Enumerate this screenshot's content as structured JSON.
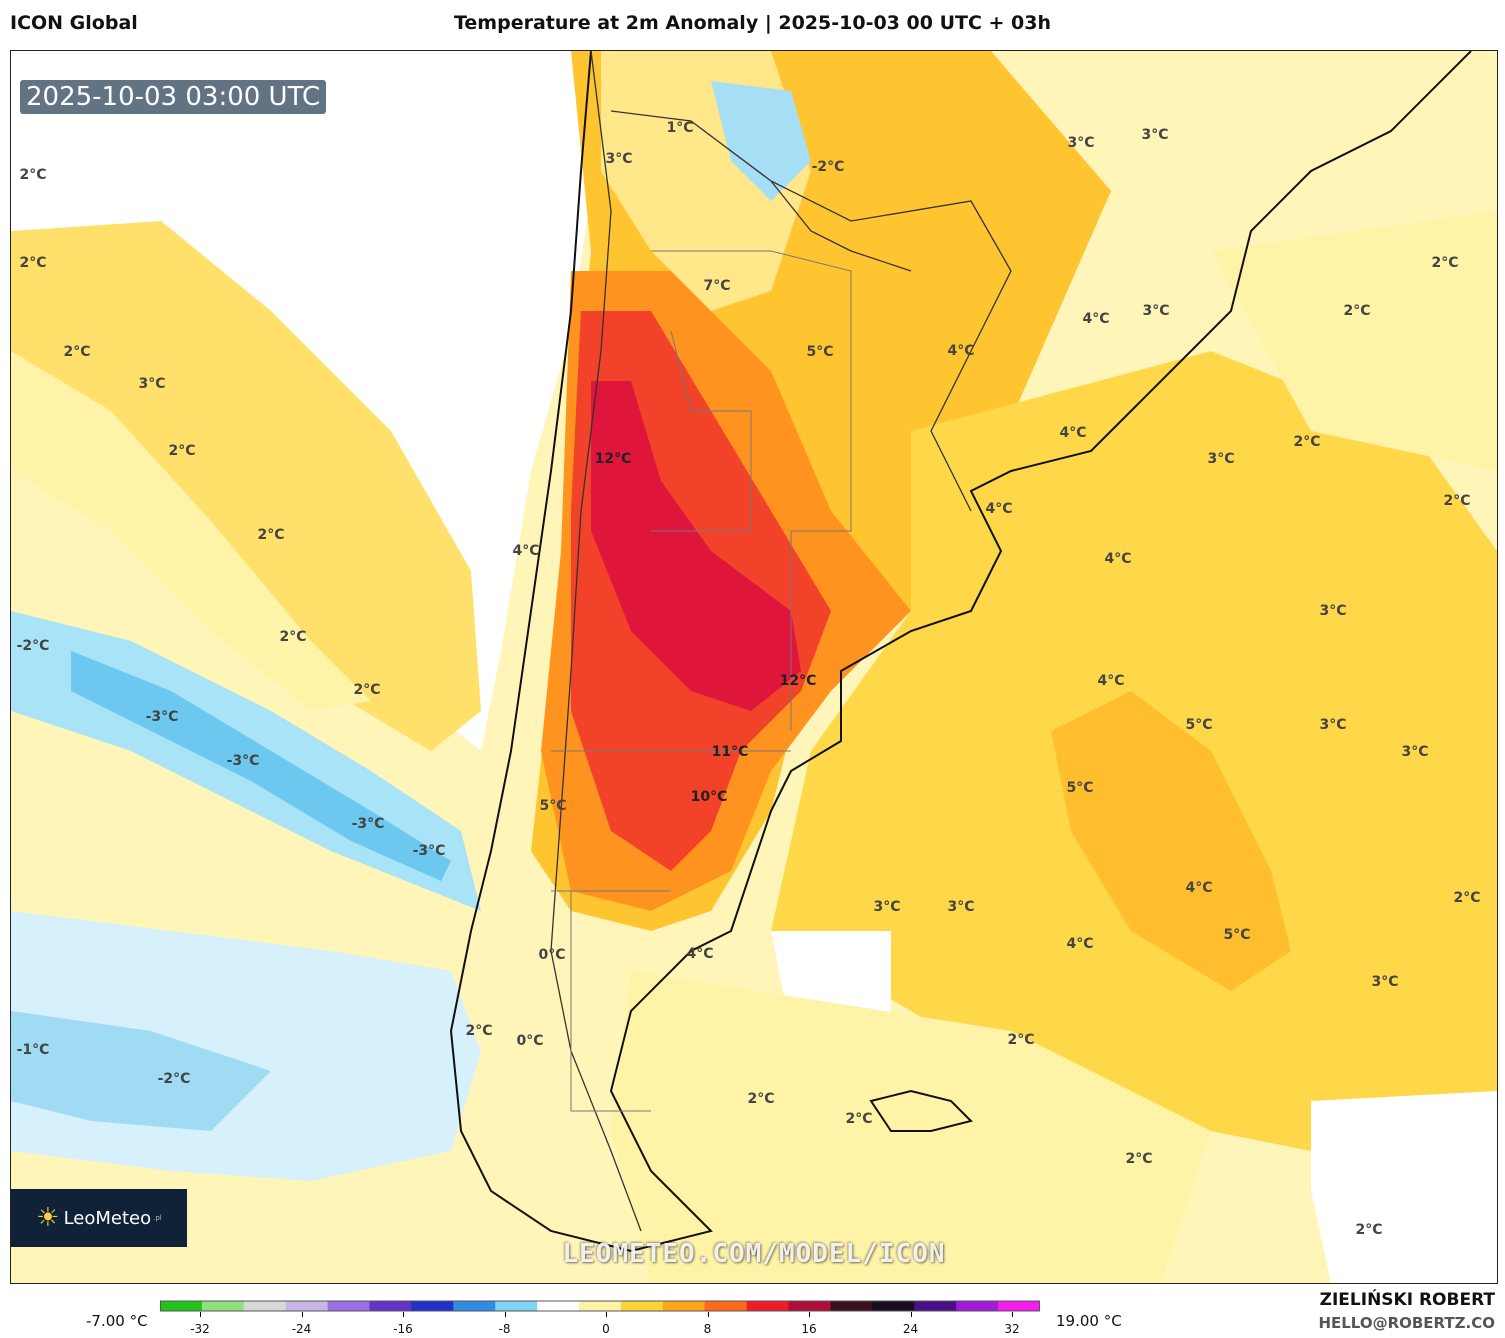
{
  "header": {
    "model": "ICON Global",
    "title": "Temperature at 2m Anomaly | 2025-10-03 00 UTC + 03h"
  },
  "map": {
    "valid_time": "2025-10-03 03:00 UTC",
    "watermark": "LEOMETEO.COM/MODEL/ICON",
    "labels": [
      "2°C",
      "2°C",
      "2°C",
      "3°C",
      "2°C",
      "2°C",
      "2°C",
      "2°C",
      "-2°C",
      "-3°C",
      "-3°C",
      "-3°C",
      "-3°C",
      "-1°C",
      "-2°C",
      "1°C",
      "3°C",
      "-2°C",
      "7°C",
      "5°C",
      "12°C",
      "4°C",
      "5°C",
      "0°C",
      "2°C",
      "0°C",
      "12°C",
      "11°C",
      "10°C",
      "4°C",
      "3°C",
      "3°C",
      "3°C",
      "4°C",
      "3°C",
      "4°C",
      "4°C",
      "4°C",
      "2°C",
      "2°C",
      "3°C",
      "2°C",
      "4°C",
      "3°C",
      "3°C",
      "4°C",
      "5°C",
      "3°C",
      "3°C",
      "5°C",
      "4°C",
      "4°C",
      "5°C",
      "3°C",
      "2°C",
      "2°C",
      "2°C",
      "2°C",
      "2°C",
      "2°C",
      "2°C"
    ]
  },
  "logo": {
    "name": "LeoMeteo",
    "suffix": ".pl",
    "icon": "sun-icon"
  },
  "legend": {
    "min_label": "-7.00 °C",
    "max_label": "19.00 °C",
    "ticks": [
      "-32",
      "-24",
      "-16",
      "-8",
      "0",
      "8",
      "16",
      "24",
      "32"
    ],
    "colors": [
      "#22c31b",
      "#8fe07c",
      "#d8d8d8",
      "#c9b4e8",
      "#9b6fe2",
      "#6432c8",
      "#2130c8",
      "#2f8de6",
      "#7fd3f5",
      "#ffffff",
      "#fff3a8",
      "#ffd43a",
      "#ffa51c",
      "#ff6a1a",
      "#f01a2a",
      "#b00d3a",
      "#3a0f1e",
      "#1a0a22",
      "#4a0f88",
      "#a01bd8",
      "#f51cf0"
    ]
  },
  "credits": {
    "author": "ZIELIŃSKI ROBERT",
    "email": "HELLO@ROBERTZ.CO"
  }
}
